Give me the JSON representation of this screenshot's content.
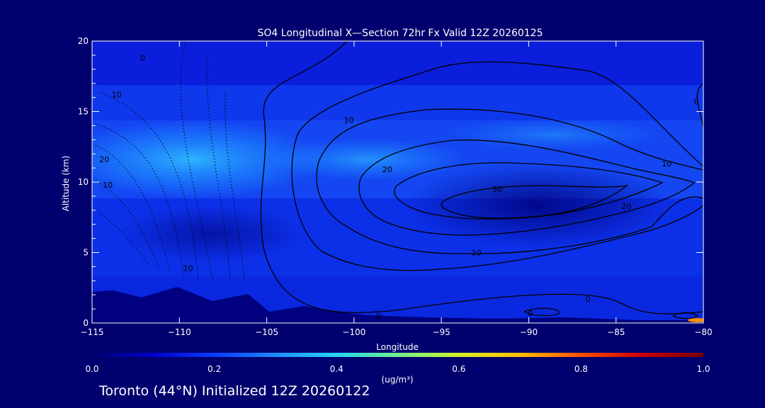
{
  "chart_data": {
    "type": "heatmap",
    "title": "SO4 Longitudinal X—Section 72hr  Fx Valid 12Z 20260125",
    "xlabel": "Longitude",
    "ylabel": "Altitude (km)",
    "xlim": [
      -115,
      -80
    ],
    "ylim": [
      0,
      20
    ],
    "x_ticks": [
      -115,
      -110,
      -105,
      -100,
      -95,
      -90,
      -85,
      -80
    ],
    "x_tick_labels": [
      "−115",
      "−110",
      "−105",
      "−100",
      "−95",
      "−90",
      "−85",
      "−80"
    ],
    "y_ticks": [
      0,
      5,
      10,
      15,
      20
    ],
    "y_tick_labels": [
      "0",
      "5",
      "10",
      "15",
      "20"
    ],
    "colorbar": {
      "label": "(ug/m³)",
      "range": [
        0.0,
        1.0
      ],
      "ticks": [
        0.0,
        0.2,
        0.4,
        0.6,
        0.8,
        1.0
      ],
      "tick_labels": [
        "0.0",
        "0.2",
        "0.4",
        "0.6",
        "0.8",
        "1.0"
      ],
      "colormap": [
        "#00006e",
        "#0000c8",
        "#0a3cff",
        "#1e8cff",
        "#28d2f0",
        "#6ef08c",
        "#d2f028",
        "#ffbe00",
        "#ff5000",
        "#c80000",
        "#780000"
      ]
    },
    "field_colors": {
      "deep": "#000082",
      "low": "#0a1ed2",
      "mid": "#1446f0",
      "bright": "#1e78ff",
      "peak": "#28aaff",
      "hot": "#ff8c00"
    },
    "contour_labels": [
      {
        "text": "0",
        "lon": -112.1,
        "alt": 18.8
      },
      {
        "text": "10",
        "lon": -113.6,
        "alt": 16.2
      },
      {
        "text": "20",
        "lon": -114.3,
        "alt": 11.6
      },
      {
        "text": "10",
        "lon": -114.1,
        "alt": 9.8
      },
      {
        "text": "10",
        "lon": -109.5,
        "alt": 3.9
      },
      {
        "text": "10",
        "lon": -100.3,
        "alt": 14.4
      },
      {
        "text": "20",
        "lon": -98.1,
        "alt": 10.9
      },
      {
        "text": "30",
        "lon": -91.8,
        "alt": 9.5
      },
      {
        "text": "20",
        "lon": -84.4,
        "alt": 8.3
      },
      {
        "text": "10",
        "lon": -82.1,
        "alt": 11.3
      },
      {
        "text": "10",
        "lon": -93.0,
        "alt": 5.0
      },
      {
        "text": "0",
        "lon": -86.6,
        "alt": 1.7
      },
      {
        "text": "0",
        "lon": -89.9,
        "alt": 0.7
      },
      {
        "text": "0",
        "lon": -98.6,
        "alt": 0.5
      },
      {
        "text": "0",
        "lon": -80.4,
        "alt": 15.7
      }
    ]
  },
  "footer": {
    "caption": "Toronto (44°N) Initialized 12Z 20260122"
  }
}
